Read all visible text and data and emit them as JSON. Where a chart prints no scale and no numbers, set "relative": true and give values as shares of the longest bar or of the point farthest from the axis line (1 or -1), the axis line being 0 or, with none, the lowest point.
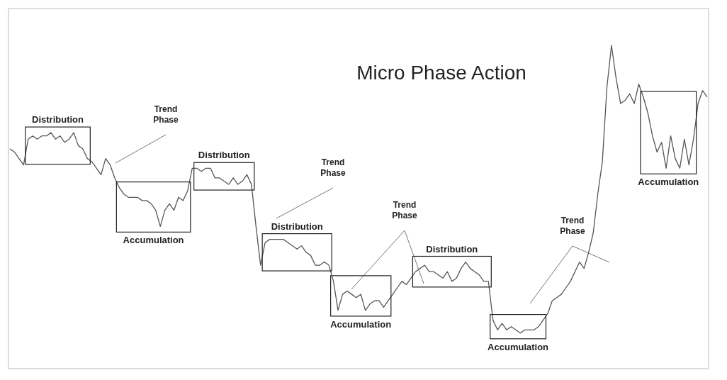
{
  "chart_data": {
    "type": "line",
    "title": "Micro Phase Action",
    "relative": true,
    "categories": [
      null,
      null,
      null,
      null,
      null,
      null,
      null,
      null,
      null,
      null,
      null,
      null,
      null,
      null,
      null,
      null,
      null,
      null,
      null,
      null,
      null,
      null,
      null,
      null,
      null,
      null,
      null,
      null,
      null,
      null,
      null,
      null,
      null,
      null,
      null,
      null,
      null,
      null,
      null,
      null,
      null,
      null,
      null,
      null,
      null,
      null,
      null,
      null,
      null,
      null,
      null,
      null,
      null,
      null,
      null,
      null,
      null,
      null,
      null,
      null,
      null,
      null,
      null,
      null,
      null,
      null,
      null,
      null,
      null,
      null,
      null,
      null,
      null,
      null,
      null,
      null,
      null,
      null,
      null,
      null,
      null,
      null,
      null,
      null,
      null,
      null,
      null,
      null,
      null,
      null,
      null,
      null,
      null,
      null,
      null,
      null,
      null,
      null,
      null,
      null,
      null,
      null,
      null,
      null,
      null,
      null,
      null,
      null,
      null,
      null,
      null,
      null,
      null,
      null,
      null,
      null,
      null,
      null,
      null,
      null,
      null,
      null,
      null,
      null,
      null,
      null,
      null,
      null,
      null,
      null,
      null,
      null,
      null,
      null,
      null,
      null,
      null,
      null,
      null,
      null,
      null,
      null,
      null,
      null,
      null,
      null,
      null,
      null,
      null,
      null,
      null,
      null,
      null,
      null
    ],
    "series": [
      {
        "color": "#555555",
        "values": [
          0.68,
          0.67,
          0.65,
          0.63,
          0.71,
          0.72,
          0.71,
          0.72,
          0.72,
          0.73,
          0.71,
          0.72,
          0.7,
          0.71,
          0.73,
          0.69,
          0.68,
          0.65,
          0.64,
          0.62,
          0.6,
          0.65,
          0.63,
          0.59,
          0.56,
          0.54,
          0.53,
          0.53,
          0.53,
          0.52,
          0.52,
          0.51,
          0.49,
          0.44,
          0.49,
          0.51,
          0.49,
          0.53,
          0.52,
          0.55,
          0.62,
          0.62,
          0.61,
          0.62,
          0.62,
          0.59,
          0.59,
          0.58,
          0.57,
          0.59,
          0.57,
          0.58,
          0.6,
          0.57,
          0.44,
          0.32,
          0.39,
          0.4,
          0.4,
          0.4,
          0.4,
          0.39,
          0.38,
          0.37,
          0.38,
          0.36,
          0.35,
          0.32,
          0.32,
          0.33,
          0.32,
          0.27,
          0.18,
          0.23,
          0.24,
          0.23,
          0.22,
          0.23,
          0.18,
          0.2,
          0.21,
          0.21,
          0.19,
          0.21,
          0.23,
          0.25,
          0.27,
          0.26,
          0.28,
          0.3,
          0.31,
          0.32,
          0.3,
          0.3,
          0.29,
          0.28,
          0.3,
          0.27,
          0.28,
          0.31,
          0.33,
          0.31,
          0.3,
          0.29,
          0.27,
          0.27,
          0.15,
          0.12,
          0.14,
          0.12,
          0.13,
          0.12,
          0.11,
          0.12,
          0.12,
          0.12,
          0.13,
          0.15,
          0.17,
          0.21,
          0.22,
          0.23,
          0.25,
          0.27,
          0.3,
          0.33,
          0.31,
          0.36,
          0.42,
          0.54,
          0.64,
          0.87,
          1,
          0.9,
          0.82,
          0.83,
          0.85,
          0.82,
          0.88,
          0.84,
          0.79,
          0.72,
          0.67,
          0.7,
          0.62,
          0.72,
          0.65,
          0.62,
          0.71,
          0.63,
          0.71,
          0.82,
          0.86,
          0.84
        ]
      }
    ],
    "annotations": [
      "Distribution",
      "Trend\nPhase",
      "Accumulation",
      "Distribution",
      "Trend\nPhase",
      "Distribution",
      "Trend\nPhase",
      "Accumulation",
      "Distribution",
      "Trend\nPhase",
      "Accumulation",
      "Accumulation"
    ]
  }
}
